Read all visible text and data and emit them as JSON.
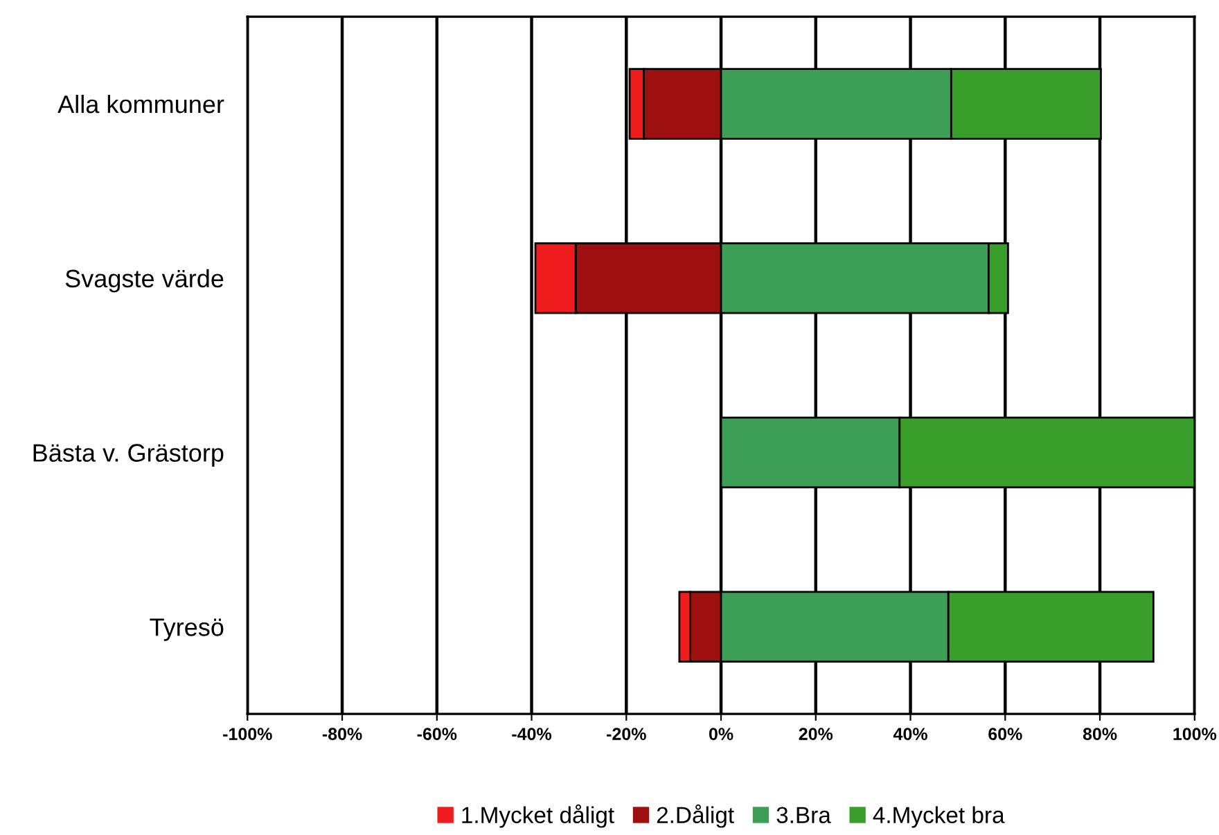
{
  "chart_data": {
    "type": "bar",
    "orientation": "horizontal",
    "stacked": true,
    "categories": [
      "Alla kommuner",
      "Svagste värde",
      "Bästa v. Grästorp",
      "Tyresö"
    ],
    "series": [
      {
        "name": "1.Mycket dåligt",
        "color": "#ee1c1c",
        "values": [
          -3,
          -8.5,
          0,
          -2.3
        ]
      },
      {
        "name": "2.Dåligt",
        "color": "#9e1010",
        "values": [
          -16.3,
          -30.7,
          0,
          -6.5
        ]
      },
      {
        "name": "3.Bra",
        "color": "#3c9f55",
        "values": [
          48.6,
          56.5,
          37.7,
          48
        ]
      },
      {
        "name": "4.Mycket bra",
        "color": "#3a9f2a",
        "values": [
          31.6,
          4.1,
          62.3,
          43.3
        ]
      }
    ],
    "xlim": [
      -100,
      100
    ],
    "xticks": [
      {
        "value": -100,
        "label": "-100%"
      },
      {
        "value": -80,
        "label": "-80%"
      },
      {
        "value": -60,
        "label": "-60%"
      },
      {
        "value": -40,
        "label": "-40%"
      },
      {
        "value": -20,
        "label": "-20%"
      },
      {
        "value": 0,
        "label": "0%"
      },
      {
        "value": 20,
        "label": "20%"
      },
      {
        "value": 40,
        "label": "40%"
      },
      {
        "value": 60,
        "label": "60%"
      },
      {
        "value": 80,
        "label": "80%"
      },
      {
        "value": 100,
        "label": "100%"
      }
    ],
    "grid": "x",
    "legend": "bottom"
  }
}
